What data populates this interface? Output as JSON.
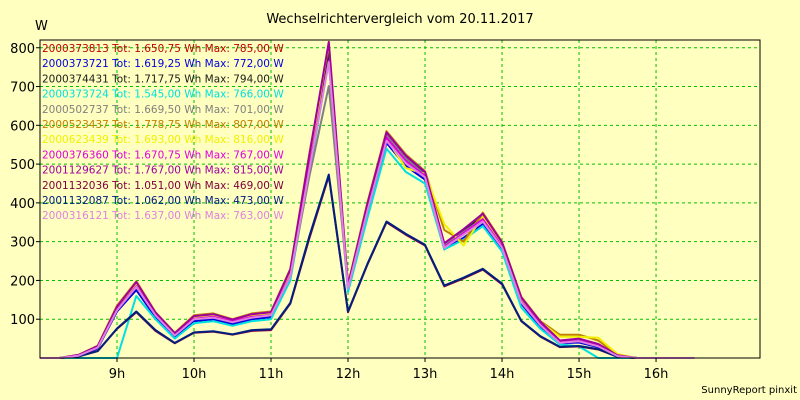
{
  "chart_data": {
    "type": "line",
    "title": "Wechselrichtervergleich vom 20.11.2017",
    "ylabel": "W",
    "footer": "SunnyReport pinxit",
    "ylim": [
      0,
      820
    ],
    "xlim": [
      8.0,
      17.35
    ],
    "yticks": [
      100,
      200,
      300,
      400,
      500,
      600,
      700,
      800
    ],
    "xticks": [
      {
        "value": 9,
        "label": "9h"
      },
      {
        "value": 10,
        "label": "10h"
      },
      {
        "value": 11,
        "label": "11h"
      },
      {
        "value": 12,
        "label": "12h"
      },
      {
        "value": 13,
        "label": "13h"
      },
      {
        "value": 14,
        "label": "14h"
      },
      {
        "value": 15,
        "label": "15h"
      },
      {
        "value": 16,
        "label": "16h"
      }
    ],
    "grid": true,
    "legend_position": "top-left",
    "x": [
      8.0,
      8.25,
      8.5,
      8.75,
      9.0,
      9.25,
      9.5,
      9.75,
      10.0,
      10.25,
      10.5,
      10.75,
      11.0,
      11.25,
      11.5,
      11.75,
      12.0,
      12.25,
      12.5,
      12.75,
      13.0,
      13.25,
      13.5,
      13.75,
      14.0,
      14.25,
      14.5,
      14.75,
      15.0,
      15.25,
      15.5,
      15.75,
      16.0,
      16.25,
      16.5
    ],
    "series": [
      {
        "name": "2000373813 Tot: 1.650,75 Wh Max: 785,00 W",
        "color": "#c00000",
        "values": [
          0,
          0,
          6,
          28,
          125,
          185,
          110,
          58,
          100,
          105,
          92,
          105,
          110,
          215,
          500,
          785,
          180,
          380,
          570,
          510,
          470,
          285,
          320,
          355,
          285,
          145,
          85,
          40,
          45,
          30,
          5,
          0,
          0,
          0,
          0
        ]
      },
      {
        "name": "2000373721 Tot: 1.619,25 Wh Max: 772,00 W",
        "color": "#0000e0",
        "values": [
          0,
          0,
          5,
          25,
          120,
          175,
          105,
          55,
          95,
          100,
          88,
          100,
          105,
          210,
          490,
          772,
          178,
          372,
          555,
          495,
          460,
          280,
          310,
          345,
          280,
          140,
          80,
          38,
          40,
          28,
          4,
          0,
          0,
          0,
          0
        ]
      },
      {
        "name": "2000374431 Tot: 1.717,75 Wh Max: 794,00 W",
        "color": "#202020",
        "values": [
          0,
          0,
          7,
          30,
          130,
          192,
          115,
          62,
          105,
          110,
          97,
          110,
          115,
          222,
          515,
          794,
          185,
          392,
          580,
          520,
          478,
          292,
          328,
          365,
          292,
          150,
          90,
          42,
          48,
          33,
          6,
          0,
          0,
          0,
          0
        ]
      },
      {
        "name": "2000373724 Tot: 1.545,00 Wh Max: 766,00 W",
        "color": "#00e0e0",
        "values": [
          0,
          0,
          0,
          0,
          0,
          160,
          100,
          50,
          90,
          95,
          83,
          95,
          100,
          200,
          480,
          766,
          170,
          360,
          540,
          480,
          450,
          280,
          305,
          340,
          275,
          130,
          75,
          35,
          30,
          0,
          0,
          0,
          0,
          0,
          0
        ]
      },
      {
        "name": "2000502737 Tot: 1.669,50 Wh Max: 701,00 W",
        "color": "#808080",
        "values": [
          0,
          0,
          6,
          28,
          125,
          188,
          112,
          60,
          102,
          108,
          95,
          108,
          112,
          210,
          470,
          701,
          182,
          385,
          575,
          515,
          472,
          290,
          325,
          360,
          290,
          148,
          88,
          41,
          47,
          32,
          5,
          0,
          0,
          0,
          0
        ]
      },
      {
        "name": "2000523437 Tot: 1.778,75 Wh Max: 807,00 W",
        "color": "#c08000",
        "values": [
          0,
          0,
          8,
          32,
          135,
          198,
          118,
          65,
          110,
          115,
          100,
          115,
          120,
          230,
          530,
          807,
          190,
          400,
          585,
          525,
          482,
          330,
          300,
          375,
          300,
          158,
          95,
          60,
          60,
          45,
          8,
          0,
          0,
          0,
          0
        ]
      },
      {
        "name": "2000623439 Tot: 1.693,00 Wh Max: 816,00 W",
        "color": "#f0f000",
        "values": [
          0,
          0,
          7,
          29,
          128,
          190,
          114,
          61,
          104,
          109,
          96,
          109,
          114,
          218,
          505,
          816,
          184,
          388,
          565,
          490,
          475,
          345,
          290,
          365,
          293,
          152,
          92,
          55,
          55,
          52,
          10,
          0,
          0,
          0,
          0
        ]
      },
      {
        "name": "2000376360 Tot: 1.670,75 Wh Max: 767,00 W",
        "color": "#e000e0",
        "values": [
          0,
          0,
          6,
          27,
          124,
          185,
          111,
          59,
          101,
          106,
          94,
          106,
          111,
          212,
          495,
          767,
          181,
          382,
          568,
          508,
          470,
          286,
          322,
          358,
          288,
          146,
          86,
          40,
          44,
          31,
          5,
          0,
          0,
          0,
          0
        ]
      },
      {
        "name": "2001129627 Tot: 1.767,00 Wh Max: 815,00 W",
        "color": "#a000a0",
        "values": [
          0,
          0,
          8,
          31,
          132,
          196,
          117,
          64,
          108,
          113,
          99,
          113,
          118,
          228,
          525,
          815,
          188,
          396,
          582,
          522,
          480,
          296,
          332,
          372,
          298,
          156,
          93,
          45,
          50,
          36,
          7,
          0,
          0,
          0,
          0
        ]
      },
      {
        "name": "2001132036 Tot: 1.051,00 Wh Max: 469,00 W",
        "color": "#800040",
        "values": [
          0,
          0,
          4,
          18,
          75,
          118,
          70,
          38,
          65,
          68,
          60,
          70,
          72,
          140,
          310,
          469,
          118,
          240,
          350,
          318,
          290,
          185,
          205,
          228,
          190,
          95,
          55,
          28,
          30,
          22,
          3,
          0,
          0,
          0,
          0
        ]
      },
      {
        "name": "2001132087 Tot: 1.062,00 Wh Max: 473,00 W",
        "color": "#002080",
        "values": [
          0,
          0,
          4,
          18,
          76,
          120,
          72,
          39,
          66,
          69,
          61,
          72,
          74,
          142,
          315,
          473,
          120,
          242,
          352,
          320,
          292,
          187,
          207,
          230,
          192,
          96,
          56,
          29,
          31,
          23,
          3,
          0,
          0,
          0,
          0
        ]
      },
      {
        "name": "2000316121 Tot: 1.637,00 Wh Max: 763,00 W",
        "color": "#e080e0",
        "values": [
          0,
          0,
          6,
          27,
          123,
          183,
          110,
          58,
          100,
          104,
          92,
          104,
          110,
          210,
          488,
          763,
          179,
          378,
          560,
          502,
          466,
          284,
          318,
          352,
          285,
          144,
          84,
          39,
          43,
          30,
          5,
          0,
          0,
          0,
          0
        ]
      }
    ]
  }
}
